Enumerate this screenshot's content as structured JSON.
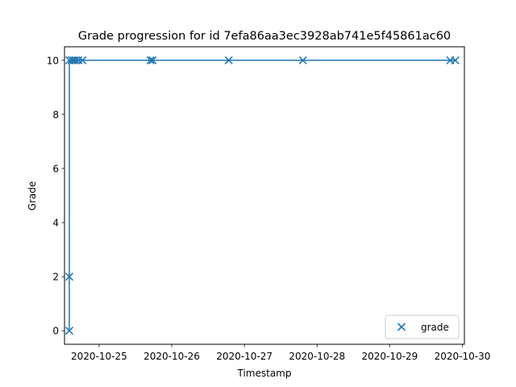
{
  "chart_data": {
    "type": "line",
    "title": "Grade progression for id 7efa86aa3ec3928ab741e5f45861ac60",
    "xlabel": "Timestamp",
    "ylabel": "Grade",
    "x_axis_type": "datetime",
    "xlim": [
      "2020-10-24T12:35:00",
      "2020-10-30T00:40:00"
    ],
    "ylim": [
      -0.5,
      10.5
    ],
    "xticks": [
      "2020-10-25",
      "2020-10-26",
      "2020-10-27",
      "2020-10-28",
      "2020-10-29",
      "2020-10-30"
    ],
    "yticks": [
      0,
      2,
      4,
      6,
      8,
      10
    ],
    "grid": false,
    "legend": {
      "position": "lower right",
      "entries": [
        "grade"
      ]
    },
    "series": [
      {
        "name": "grade",
        "color": "#1f77b4",
        "marker": "x",
        "points": [
          {
            "x": "2020-10-24T14:10:00",
            "y": 0
          },
          {
            "x": "2020-10-24T14:10:00",
            "y": 2
          },
          {
            "x": "2020-10-24T14:10:00",
            "y": 10
          },
          {
            "x": "2020-10-24T15:00:00",
            "y": 10
          },
          {
            "x": "2020-10-24T15:40:00",
            "y": 10
          },
          {
            "x": "2020-10-24T16:20:00",
            "y": 10
          },
          {
            "x": "2020-10-24T17:10:00",
            "y": 10
          },
          {
            "x": "2020-10-24T18:30:00",
            "y": 10
          },
          {
            "x": "2020-10-25T17:00:00",
            "y": 10
          },
          {
            "x": "2020-10-25T17:40:00",
            "y": 10
          },
          {
            "x": "2020-10-26T18:50:00",
            "y": 10
          },
          {
            "x": "2020-10-27T19:20:00",
            "y": 10
          },
          {
            "x": "2020-10-29T20:00:00",
            "y": 10
          },
          {
            "x": "2020-10-29T21:40:00",
            "y": 10
          }
        ]
      }
    ]
  }
}
